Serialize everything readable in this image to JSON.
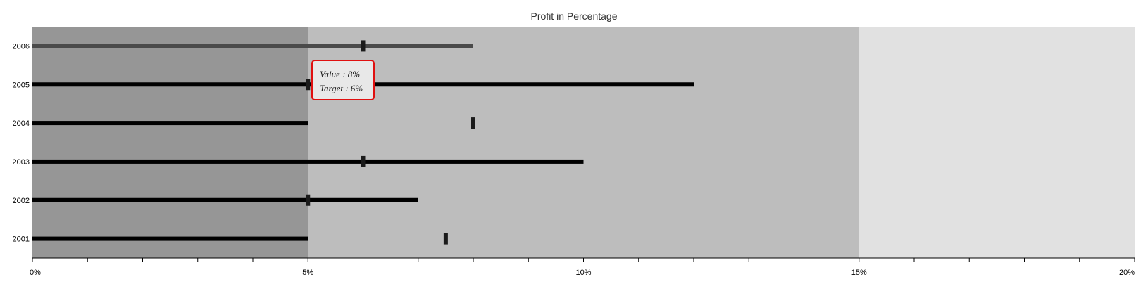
{
  "chart_data": {
    "type": "bullet",
    "title": "Profit in Percentage",
    "categories": [
      "2006",
      "2005",
      "2004",
      "2003",
      "2002",
      "2001"
    ],
    "values": [
      8,
      12,
      5,
      10,
      7,
      5
    ],
    "targets": [
      6,
      5,
      8,
      6,
      5,
      7.5
    ],
    "ranges": [
      {
        "from": 0,
        "to": 5,
        "color": "#969696"
      },
      {
        "from": 5,
        "to": 15,
        "color": "#bdbdbd"
      },
      {
        "from": 15,
        "to": 20,
        "color": "#e1e1e1"
      }
    ],
    "highlight_bar_color": "#4a4a4a",
    "bar_color": "#000000",
    "xlim": [
      0,
      20
    ],
    "x_major_ticks": [
      "0%",
      "5%",
      "10%",
      "15%",
      "20%"
    ],
    "x_minor_step": 1,
    "tooltip": {
      "value_text": "Value : 8%",
      "target_text": "Target : 6%"
    }
  }
}
